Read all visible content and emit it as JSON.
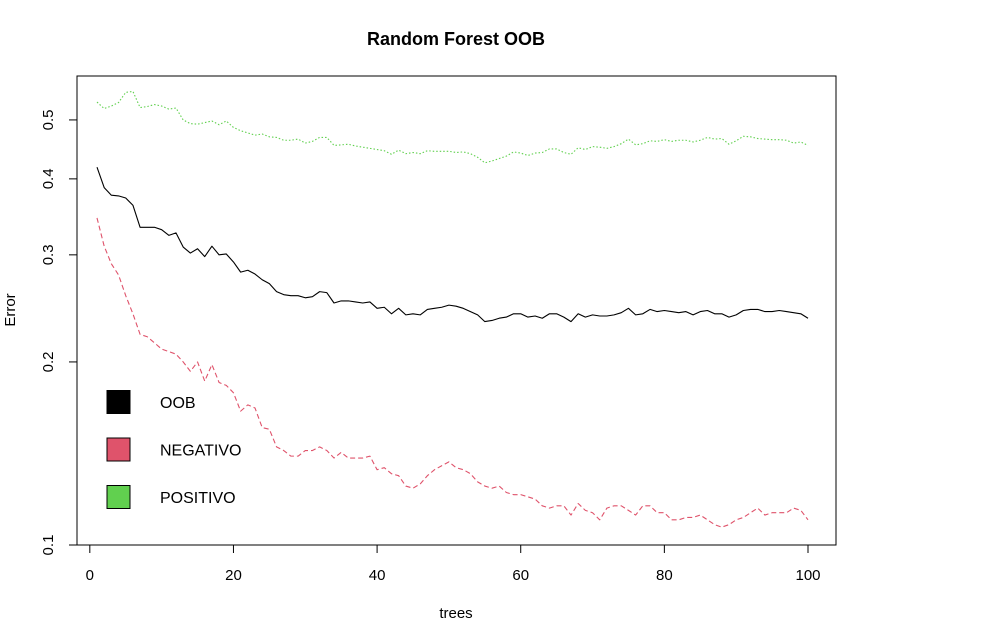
{
  "chart_data": {
    "type": "line",
    "title": "Random Forest OOB",
    "xlabel": "trees",
    "ylabel": "Error",
    "y_scale": "log",
    "xlim": [
      1,
      100
    ],
    "ylim": [
      0.1,
      0.56
    ],
    "x_ticks": [
      0,
      20,
      40,
      60,
      80,
      100
    ],
    "y_ticks": [
      0.1,
      0.2,
      0.3,
      0.4,
      0.5
    ],
    "grid": false,
    "legend_position": "bottom-left",
    "series": [
      {
        "name": "OOB",
        "color": "#000000",
        "line_style": "solid",
        "values": [
          0.418,
          0.387,
          0.376,
          0.375,
          0.372,
          0.362,
          0.333,
          0.333,
          0.333,
          0.33,
          0.323,
          0.326,
          0.309,
          0.302,
          0.307,
          0.298,
          0.31,
          0.3,
          0.301,
          0.292,
          0.281,
          0.283,
          0.279,
          0.273,
          0.269,
          0.261,
          0.258,
          0.257,
          0.257,
          0.255,
          0.256,
          0.261,
          0.26,
          0.25,
          0.252,
          0.252,
          0.251,
          0.25,
          0.251,
          0.245,
          0.246,
          0.24,
          0.245,
          0.239,
          0.24,
          0.239,
          0.244,
          0.245,
          0.246,
          0.248,
          0.247,
          0.245,
          0.242,
          0.239,
          0.233,
          0.234,
          0.236,
          0.237,
          0.24,
          0.24,
          0.237,
          0.238,
          0.236,
          0.24,
          0.24,
          0.237,
          0.233,
          0.24,
          0.237,
          0.239,
          0.238,
          0.238,
          0.239,
          0.241,
          0.245,
          0.239,
          0.24,
          0.244,
          0.242,
          0.243,
          0.242,
          0.241,
          0.242,
          0.239,
          0.242,
          0.243,
          0.24,
          0.24,
          0.237,
          0.239,
          0.243,
          0.244,
          0.244,
          0.242,
          0.242,
          0.243,
          0.242,
          0.241,
          0.24,
          0.236
        ]
      },
      {
        "name": "NEGATIVO",
        "color": "#df536b",
        "line_style": "dashed",
        "values": [
          0.345,
          0.31,
          0.29,
          0.278,
          0.257,
          0.24,
          0.222,
          0.22,
          0.215,
          0.21,
          0.208,
          0.206,
          0.2,
          0.193,
          0.2,
          0.186,
          0.198,
          0.185,
          0.183,
          0.178,
          0.166,
          0.17,
          0.168,
          0.156,
          0.155,
          0.145,
          0.143,
          0.14,
          0.14,
          0.143,
          0.143,
          0.145,
          0.143,
          0.139,
          0.142,
          0.139,
          0.139,
          0.139,
          0.14,
          0.133,
          0.134,
          0.131,
          0.13,
          0.125,
          0.124,
          0.126,
          0.13,
          0.133,
          0.135,
          0.137,
          0.134,
          0.133,
          0.131,
          0.127,
          0.125,
          0.124,
          0.125,
          0.122,
          0.121,
          0.121,
          0.12,
          0.119,
          0.116,
          0.115,
          0.116,
          0.116,
          0.112,
          0.117,
          0.114,
          0.113,
          0.11,
          0.115,
          0.116,
          0.116,
          0.114,
          0.112,
          0.116,
          0.116,
          0.113,
          0.113,
          0.11,
          0.11,
          0.111,
          0.111,
          0.112,
          0.11,
          0.108,
          0.107,
          0.108,
          0.11,
          0.111,
          0.113,
          0.115,
          0.112,
          0.113,
          0.113,
          0.113,
          0.115,
          0.114,
          0.11
        ]
      },
      {
        "name": "POSITIVO",
        "color": "#61d04f",
        "line_style": "dotted",
        "values": [
          0.535,
          0.522,
          0.527,
          0.534,
          0.555,
          0.557,
          0.524,
          0.526,
          0.53,
          0.527,
          0.521,
          0.523,
          0.5,
          0.493,
          0.492,
          0.495,
          0.498,
          0.491,
          0.498,
          0.486,
          0.48,
          0.476,
          0.472,
          0.474,
          0.469,
          0.468,
          0.463,
          0.463,
          0.465,
          0.458,
          0.461,
          0.468,
          0.468,
          0.454,
          0.455,
          0.456,
          0.453,
          0.451,
          0.449,
          0.447,
          0.445,
          0.439,
          0.446,
          0.44,
          0.442,
          0.44,
          0.445,
          0.444,
          0.444,
          0.444,
          0.442,
          0.443,
          0.44,
          0.434,
          0.425,
          0.428,
          0.432,
          0.436,
          0.443,
          0.441,
          0.437,
          0.441,
          0.442,
          0.448,
          0.448,
          0.442,
          0.439,
          0.45,
          0.447,
          0.452,
          0.451,
          0.449,
          0.452,
          0.457,
          0.465,
          0.455,
          0.457,
          0.462,
          0.461,
          0.464,
          0.461,
          0.463,
          0.463,
          0.46,
          0.463,
          0.468,
          0.465,
          0.466,
          0.456,
          0.462,
          0.47,
          0.469,
          0.466,
          0.465,
          0.464,
          0.464,
          0.463,
          0.458,
          0.46,
          0.454
        ]
      }
    ]
  }
}
